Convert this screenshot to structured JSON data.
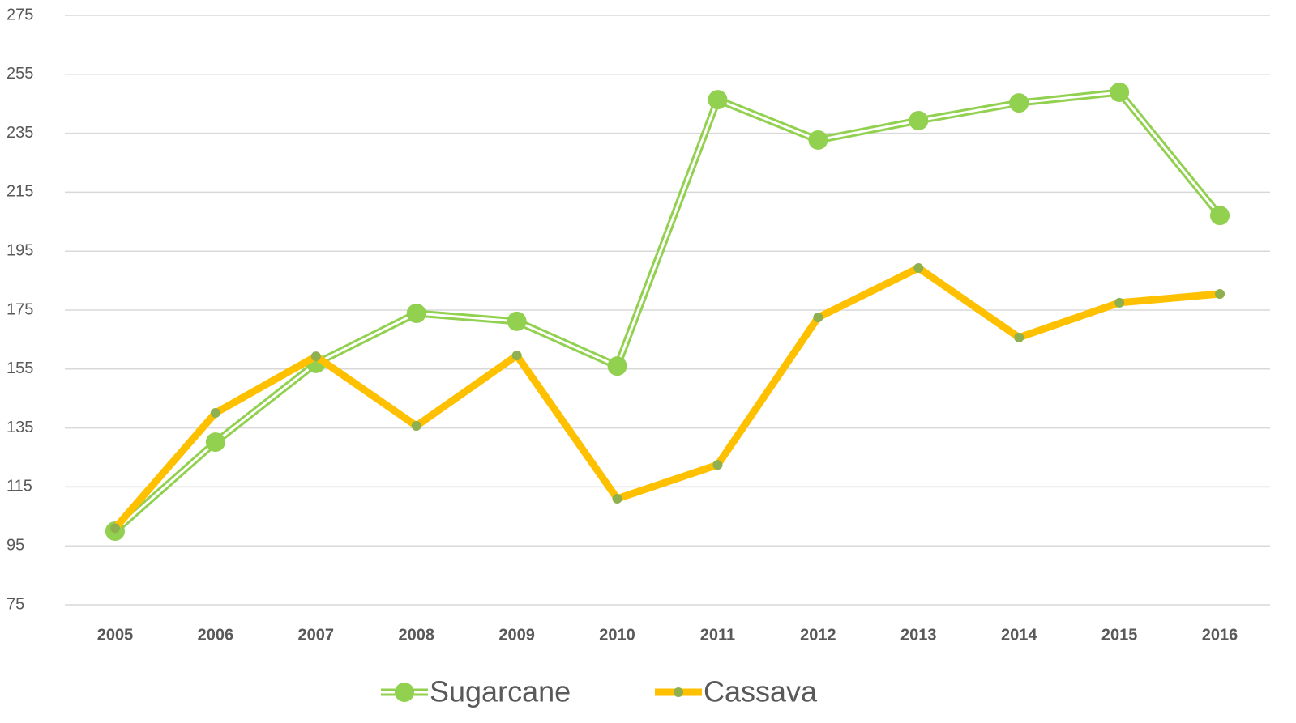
{
  "chart_data": {
    "type": "line",
    "categories": [
      "2005",
      "2006",
      "2007",
      "2008",
      "2009",
      "2010",
      "2011",
      "2012",
      "2013",
      "2014",
      "2015",
      "2016"
    ],
    "series": [
      {
        "name": "Sugarcane",
        "color": "#92d050",
        "marker_color": "#92d050",
        "values": [
          100,
          130.2,
          156.9,
          173.9,
          171.2,
          156,
          246.4,
          232.7,
          239.3,
          245.3,
          248.9,
          207.1
        ]
      },
      {
        "name": "Cassava",
        "color": "#ffc000",
        "marker_color": "#8fb04e",
        "values": [
          101,
          140.1,
          159.3,
          135.7,
          159.6,
          111,
          122.5,
          172.5,
          189.3,
          165.7,
          177.5,
          180.5
        ]
      }
    ],
    "ylim": [
      75,
      275
    ],
    "yticks": [
      75,
      95,
      115,
      135,
      155,
      175,
      195,
      215,
      235,
      255,
      275
    ],
    "grid": true,
    "legend": "bottom"
  }
}
